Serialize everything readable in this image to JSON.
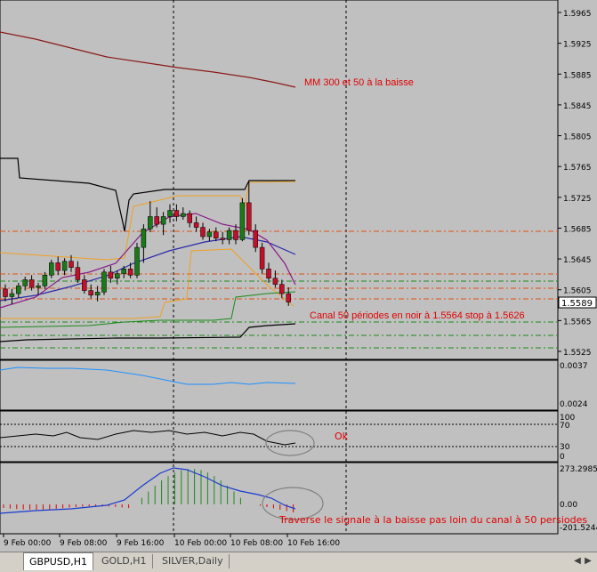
{
  "symbol": "GBPUSD,H1",
  "price_axis": {
    "labels": [
      "1.5965",
      "1.5925",
      "1.5885",
      "1.5845",
      "1.5805",
      "1.5765",
      "1.5725",
      "1.5685",
      "1.5645",
      "1.5605",
      "1.5565",
      "1.5525"
    ],
    "current_price": "1.5589"
  },
  "time_axis": {
    "labels": [
      "9 Feb 00:00",
      "9 Feb 08:00",
      "9 Feb 16:00",
      "10 Feb 00:00",
      "10 Feb 08:00",
      "10 Feb 16:00"
    ]
  },
  "annotations": {
    "ma_note": "MM 300 et 50 à la baisse",
    "channel_note": "Canal 50 périodes en noir à 1.5564 stop à 1.5626",
    "ok_note": "Ok",
    "macd_note": "Traverse le signale à la baisse pas loin du canal à 50 persiodes"
  },
  "indicator1": {
    "labels": [
      "0.0037",
      "0.0024"
    ]
  },
  "indicator2": {
    "labels": [
      "100",
      "70",
      "30",
      "0"
    ]
  },
  "indicator3": {
    "labels": [
      "273.2985",
      "0.00",
      "-201.5244"
    ]
  },
  "tabs": [
    {
      "label": "GBPUSD,H1",
      "active": true
    },
    {
      "label": "GOLD,H1",
      "active": false
    },
    {
      "label": "SILVER,Daily",
      "active": false
    }
  ],
  "colors": {
    "bull": "#1a7a1a",
    "bear": "#c0102a",
    "annotation": "#e00000",
    "ma300": "#8b1a1a",
    "channel": "#000000"
  },
  "chart_data": {
    "type": "candlestick",
    "ohlc": [
      [
        1.5606,
        1.5612,
        1.559,
        1.5596
      ],
      [
        1.5596,
        1.5606,
        1.5586,
        1.56
      ],
      [
        1.56,
        1.5614,
        1.5594,
        1.561
      ],
      [
        1.561,
        1.5622,
        1.5604,
        1.5618
      ],
      [
        1.5618,
        1.5624,
        1.5604,
        1.5608
      ],
      [
        1.5608,
        1.5614,
        1.5598,
        1.561
      ],
      [
        1.561,
        1.5628,
        1.5606,
        1.5624
      ],
      [
        1.5624,
        1.5644,
        1.562,
        1.564
      ],
      [
        1.564,
        1.5648,
        1.5624,
        1.563
      ],
      [
        1.563,
        1.5646,
        1.5624,
        1.5642
      ],
      [
        1.5642,
        1.565,
        1.5628,
        1.5634
      ],
      [
        1.5634,
        1.5642,
        1.5614,
        1.5618
      ],
      [
        1.5618,
        1.5624,
        1.56,
        1.5604
      ],
      [
        1.5604,
        1.5612,
        1.5594,
        1.5598
      ],
      [
        1.5598,
        1.561,
        1.559,
        1.5602
      ],
      [
        1.5602,
        1.5632,
        1.5598,
        1.5628
      ],
      [
        1.5628,
        1.5636,
        1.5614,
        1.562
      ],
      [
        1.562,
        1.563,
        1.5612,
        1.5626
      ],
      [
        1.5626,
        1.5636,
        1.562,
        1.5632
      ],
      [
        1.5632,
        1.564,
        1.562,
        1.5624
      ],
      [
        1.5624,
        1.5666,
        1.562,
        1.566
      ],
      [
        1.566,
        1.569,
        1.564,
        1.5684
      ],
      [
        1.5684,
        1.572,
        1.568,
        1.57
      ],
      [
        1.57,
        1.5712,
        1.5686,
        1.569
      ],
      [
        1.569,
        1.5706,
        1.5676,
        1.57
      ],
      [
        1.57,
        1.5716,
        1.5692,
        1.5708
      ],
      [
        1.5708,
        1.5716,
        1.5694,
        1.57
      ],
      [
        1.57,
        1.5712,
        1.5696,
        1.5704
      ],
      [
        1.5704,
        1.5708,
        1.5686,
        1.5692
      ],
      [
        1.5692,
        1.57,
        1.568,
        1.5686
      ],
      [
        1.5686,
        1.5692,
        1.567,
        1.5674
      ],
      [
        1.5674,
        1.5684,
        1.5668,
        1.568
      ],
      [
        1.568,
        1.5686,
        1.5668,
        1.5672
      ],
      [
        1.5672,
        1.568,
        1.5664,
        1.567
      ],
      [
        1.567,
        1.5686,
        1.5664,
        1.5682
      ],
      [
        1.5682,
        1.569,
        1.5664,
        1.567
      ],
      [
        1.567,
        1.5724,
        1.5668,
        1.5718
      ],
      [
        1.5718,
        1.5746,
        1.5676,
        1.5682
      ],
      [
        1.5682,
        1.569,
        1.5654,
        1.566
      ],
      [
        1.566,
        1.5666,
        1.5626,
        1.5632
      ],
      [
        1.5632,
        1.564,
        1.5614,
        1.562
      ],
      [
        1.562,
        1.563,
        1.5608,
        1.5612
      ],
      [
        1.5612,
        1.5618,
        1.5594,
        1.56
      ],
      [
        1.56,
        1.5608,
        1.5584,
        1.5589
      ]
    ],
    "horizontal_levels": [
      1.5685,
      1.563,
      1.5617,
      1.561,
      1.558,
      1.5558,
      1.5548
    ],
    "ylim": [
      1.5515,
      1.598
    ]
  }
}
